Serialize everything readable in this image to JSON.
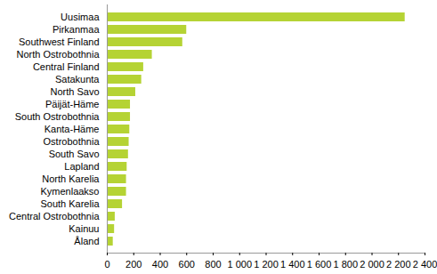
{
  "chart_data": {
    "type": "bar",
    "orientation": "horizontal",
    "categories": [
      "Uusimaa",
      "Pirkanmaa",
      "Southwest Finland",
      "North Ostrobothnia",
      "Central Finland",
      "Satakunta",
      "North Savo",
      "Päijät-Häme",
      "South Ostrobothnia",
      "Kanta-Häme",
      "Ostrobothnia",
      "South Savo",
      "Lapland",
      "North Karelia",
      "Kymenlaakso",
      "South Karelia",
      "Central Ostrobothnia",
      "Kainuu",
      "Åland"
    ],
    "values": [
      2250,
      600,
      570,
      340,
      275,
      260,
      215,
      175,
      175,
      170,
      165,
      160,
      150,
      145,
      145,
      115,
      60,
      55,
      45
    ],
    "color": "#b5d334",
    "xlim": [
      0,
      2400
    ],
    "xticks": [
      0,
      200,
      400,
      600,
      800,
      {
        "value": 1000,
        "label": "1 000"
      },
      {
        "value": 1200,
        "label": "1 200"
      },
      {
        "value": 1400,
        "label": "1 400"
      },
      {
        "value": 1600,
        "label": "1 600"
      },
      {
        "value": 1800,
        "label": "1 800"
      },
      {
        "value": 2000,
        "label": "2 000"
      },
      {
        "value": 2200,
        "label": "2 200"
      },
      {
        "value": 2400,
        "label": "2 400"
      }
    ],
    "grid": false
  }
}
